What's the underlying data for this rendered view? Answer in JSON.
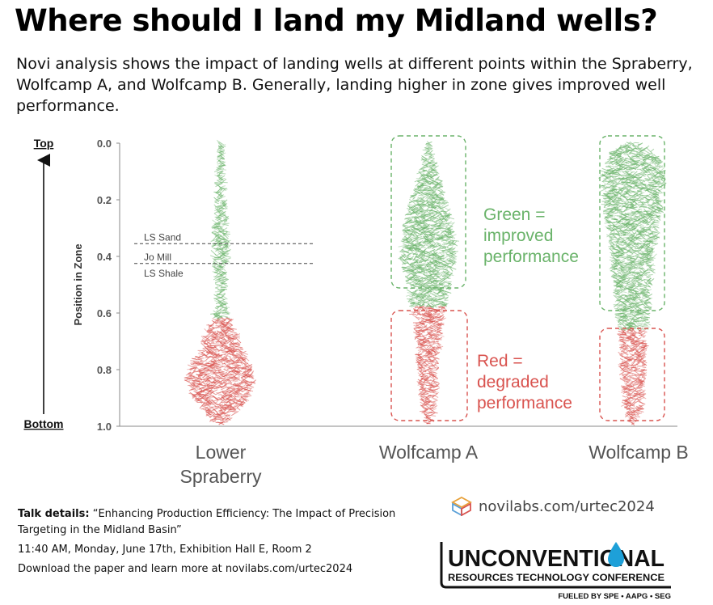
{
  "header": {
    "title": "Where should I land my Midland wells?",
    "subtitle": "Novi analysis shows the impact of landing wells at different points within the Spraberry, Wolfcamp A, and Wolfcamp B. Generally, landing higher in zone gives improved well performance."
  },
  "chart_data": {
    "type": "violin-beeswarm",
    "ylabel": "Position in Zone",
    "ylim": [
      0.0,
      1.0
    ],
    "y_inverted": true,
    "y_ticks": [
      "0.0",
      "0.2",
      "0.4",
      "0.6",
      "0.8",
      "1.0"
    ],
    "y_tick_values": [
      0.0,
      0.2,
      0.4,
      0.6,
      0.8,
      1.0
    ],
    "axis_top_label": "Top",
    "axis_bottom_label": "Bottom",
    "categories": [
      "Lower\nSpraberry",
      "Wolfcamp A",
      "Wolfcamp B"
    ],
    "series": [
      {
        "category": "Lower Spraberry",
        "green_range": [
          0.0,
          0.62
        ],
        "red_range": [
          0.62,
          0.99
        ],
        "profile": [
          [
            0.0,
            0.006
          ],
          [
            0.08,
            0.012
          ],
          [
            0.16,
            0.016
          ],
          [
            0.24,
            0.022
          ],
          [
            0.3,
            0.03
          ],
          [
            0.36,
            0.036
          ],
          [
            0.42,
            0.032
          ],
          [
            0.48,
            0.02
          ],
          [
            0.54,
            0.018
          ],
          [
            0.6,
            0.03
          ],
          [
            0.66,
            0.06
          ],
          [
            0.72,
            0.09
          ],
          [
            0.78,
            0.13
          ],
          [
            0.84,
            0.15
          ],
          [
            0.9,
            0.12
          ],
          [
            0.95,
            0.07
          ],
          [
            0.99,
            0.02
          ]
        ]
      },
      {
        "category": "Wolfcamp A",
        "green_range": [
          0.0,
          0.58
        ],
        "red_range": [
          0.58,
          0.99
        ],
        "profile": [
          [
            0.0,
            0.006
          ],
          [
            0.05,
            0.02
          ],
          [
            0.1,
            0.04
          ],
          [
            0.16,
            0.06
          ],
          [
            0.22,
            0.085
          ],
          [
            0.28,
            0.105
          ],
          [
            0.34,
            0.12
          ],
          [
            0.4,
            0.12
          ],
          [
            0.46,
            0.105
          ],
          [
            0.52,
            0.09
          ],
          [
            0.58,
            0.075
          ],
          [
            0.64,
            0.06
          ],
          [
            0.7,
            0.05
          ],
          [
            0.76,
            0.045
          ],
          [
            0.82,
            0.04
          ],
          [
            0.88,
            0.035
          ],
          [
            0.94,
            0.03
          ],
          [
            0.99,
            0.01
          ]
        ]
      },
      {
        "category": "Wolfcamp B",
        "green_range": [
          0.0,
          0.66
        ],
        "red_range": [
          0.66,
          0.99
        ],
        "profile": [
          [
            0.0,
            0.02
          ],
          [
            0.02,
            0.08
          ],
          [
            0.06,
            0.12
          ],
          [
            0.12,
            0.14
          ],
          [
            0.2,
            0.13
          ],
          [
            0.28,
            0.115
          ],
          [
            0.36,
            0.1
          ],
          [
            0.44,
            0.09
          ],
          [
            0.52,
            0.08
          ],
          [
            0.6,
            0.07
          ],
          [
            0.66,
            0.06
          ],
          [
            0.72,
            0.055
          ],
          [
            0.8,
            0.05
          ],
          [
            0.88,
            0.045
          ],
          [
            0.95,
            0.035
          ],
          [
            0.99,
            0.01
          ]
        ]
      }
    ],
    "reference_lines": [
      {
        "y": 0.355,
        "label_above": "LS Sand"
      },
      {
        "y": 0.425,
        "label_above": "Jo Mill",
        "label_below": "LS Shale"
      }
    ],
    "annotations": [
      {
        "text": "Green =\nimproved\nperformance",
        "color": "#6ab36a"
      },
      {
        "text": "Red =\ndegraded\nperformance",
        "color": "#d9534f"
      }
    ],
    "colors": {
      "green": "#6ab36a",
      "red": "#d9534f",
      "green_box": "#6ab36a",
      "red_box": "#d9534f"
    }
  },
  "footer": {
    "talk_label": "Talk details:",
    "talk_title": "“Enhancing Production Efficiency: The Impact of Precision Targeting in the Midland Basin”",
    "schedule": "11:40 AM, Monday, June 17th, Exhibition Hall E, Room 2",
    "download": "Download the paper and learn more at novilabs.com/urtec2024",
    "url": "novilabs.com/urtec2024",
    "logo_main": "UNCONVENTIONAL",
    "logo_sub": "RESOURCES TECHNOLOGY CONFERENCE",
    "logo_fueled": "FUELED BY SPE • AAPG • SEG",
    "logo_icon": "novi-logo-icon",
    "urtec_icon": "oil-drop-icon"
  }
}
